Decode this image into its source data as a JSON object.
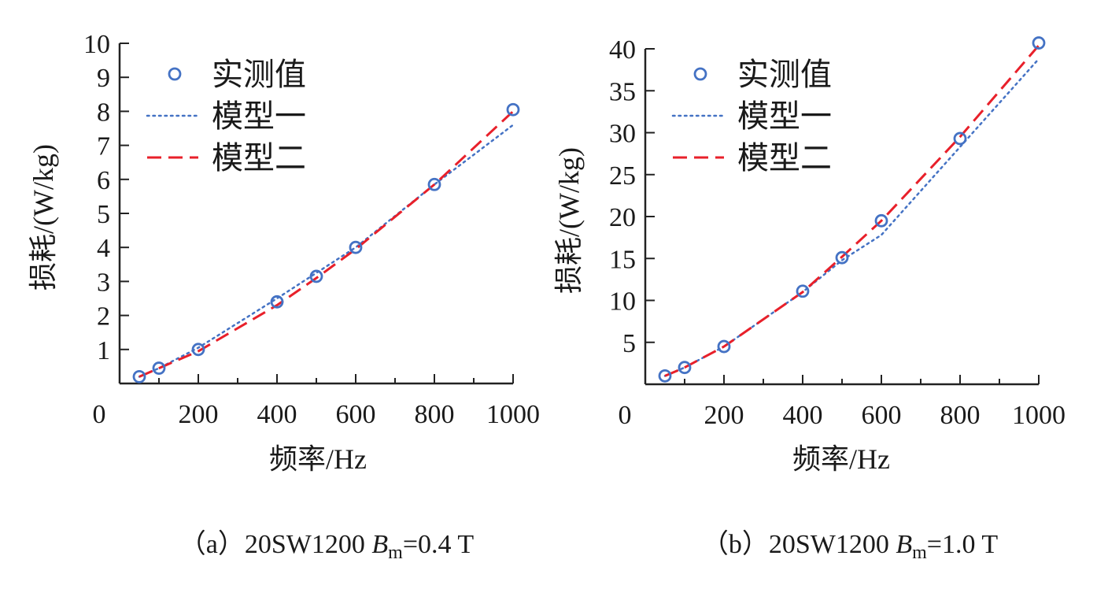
{
  "colors": {
    "measured": "#4472c4",
    "model1": "#4472c4",
    "model2": "#e8202a",
    "axis": "#222222"
  },
  "chart_data": [
    {
      "type": "line",
      "caption": {
        "prefix": "（a）20SW1200 ",
        "symbol": "B",
        "subscript": "m",
        "suffix": "=0.4 T"
      },
      "xlabel": "频率/Hz",
      "ylabel": "损耗/(W/kg)",
      "xlim": [
        0,
        1000
      ],
      "ylim": [
        0,
        10
      ],
      "xticks": [
        0,
        200,
        400,
        600,
        800,
        1000
      ],
      "yticks": [
        1,
        2,
        3,
        4,
        5,
        6,
        7,
        8,
        9,
        10
      ],
      "origin_label": "0",
      "legend_position": "top-left",
      "x": [
        50,
        100,
        200,
        400,
        500,
        600,
        800,
        1000
      ],
      "series": [
        {
          "name": "实测值",
          "style": "markers",
          "values": [
            0.2,
            0.45,
            1.0,
            2.4,
            3.15,
            4.0,
            5.85,
            8.05
          ]
        },
        {
          "name": "模型一",
          "style": "dotted",
          "values": [
            0.2,
            0.45,
            1.05,
            2.5,
            3.25,
            4.0,
            5.85,
            7.6
          ]
        },
        {
          "name": "模型二",
          "style": "dashed",
          "values": [
            0.2,
            0.45,
            0.95,
            2.3,
            3.1,
            3.95,
            5.85,
            8.0
          ]
        }
      ]
    },
    {
      "type": "line",
      "caption": {
        "prefix": "（b）20SW1200 ",
        "symbol": "B",
        "subscript": "m",
        "suffix": "=1.0 T"
      },
      "xlabel": "频率/Hz",
      "ylabel": "损耗/(W/kg)",
      "xlim": [
        0,
        1000
      ],
      "ylim": [
        0,
        40
      ],
      "xticks": [
        0,
        200,
        400,
        600,
        800,
        1000
      ],
      "yticks": [
        5,
        10,
        15,
        20,
        25,
        30,
        35,
        40
      ],
      "origin_label": "0",
      "legend_position": "top-left",
      "x": [
        50,
        100,
        200,
        400,
        500,
        600,
        800,
        1000
      ],
      "series": [
        {
          "name": "实测值",
          "style": "markers",
          "values": [
            1.0,
            2.0,
            4.5,
            11.1,
            15.1,
            19.5,
            29.3,
            40.7
          ]
        },
        {
          "name": "模型一",
          "style": "dotted",
          "values": [
            1.0,
            2.0,
            4.5,
            11.0,
            14.8,
            17.8,
            28.3,
            38.8
          ]
        },
        {
          "name": "模型二",
          "style": "dashed",
          "values": [
            1.0,
            2.0,
            4.5,
            11.0,
            15.2,
            19.5,
            29.5,
            40.4
          ]
        }
      ]
    }
  ]
}
